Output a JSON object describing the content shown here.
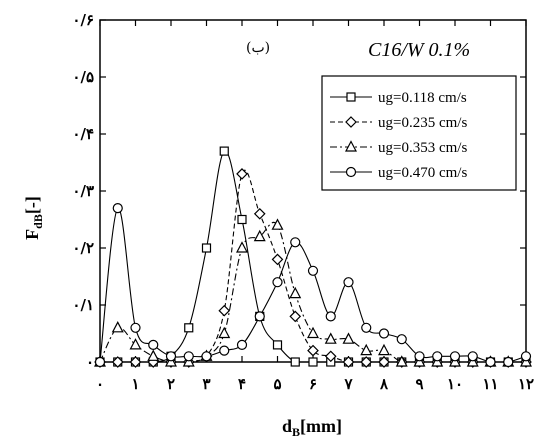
{
  "chart_data": {
    "type": "line",
    "panel_label": "(ب)",
    "annotation": "C16/W 0.1%",
    "xlabel": {
      "main": "d",
      "sub": "B",
      "unit": "[mm]"
    },
    "ylabel": {
      "main": "F",
      "sub": "dB",
      "unit": "[-]"
    },
    "xlim": [
      0,
      12
    ],
    "ylim": [
      0,
      0.6
    ],
    "xticks": [
      0,
      1,
      2,
      3,
      4,
      5,
      6,
      7,
      8,
      9,
      10,
      11,
      12
    ],
    "xtick_labels": [
      "۰",
      "۱",
      "۲",
      "۳",
      "۴",
      "۵",
      "۶",
      "۷",
      "۸",
      "۹",
      "۱۰",
      "۱۱",
      "۱۲"
    ],
    "yticks": [
      0,
      0.1,
      0.2,
      0.3,
      0.4,
      0.5,
      0.6
    ],
    "ytick_labels": [
      "۰",
      "۰/۱",
      "۰/۲",
      "۰/۳",
      "۰/۴",
      "۰/۵",
      "۰/۶"
    ],
    "legend_position": "top-right",
    "series": [
      {
        "name": "ug=0.118 cm/s",
        "marker": "square",
        "dash": "solid",
        "x": [
          0,
          0.5,
          1,
          1.5,
          2,
          2.5,
          3,
          3.5,
          4,
          4.5,
          5,
          5.5,
          6,
          6.5,
          7,
          7.5,
          8,
          8.5,
          9,
          9.5,
          10,
          10.5,
          11,
          11.5,
          12
        ],
        "y": [
          0,
          0,
          0,
          0,
          0.01,
          0.06,
          0.2,
          0.37,
          0.25,
          0.08,
          0.03,
          0,
          0,
          0,
          0,
          0,
          0,
          0,
          0,
          0,
          0,
          0,
          0,
          0,
          0
        ]
      },
      {
        "name": "ug=0.235 cm/s",
        "marker": "diamond",
        "dash": "dash",
        "x": [
          0,
          0.5,
          1,
          1.5,
          2,
          2.5,
          3,
          3.5,
          4,
          4.5,
          5,
          5.5,
          6,
          6.5,
          7,
          7.5,
          8,
          8.5,
          9,
          9.5,
          10,
          10.5,
          11,
          11.5,
          12
        ],
        "y": [
          0,
          0,
          0,
          0,
          0,
          0,
          0.01,
          0.09,
          0.33,
          0.26,
          0.18,
          0.08,
          0.02,
          0.01,
          0,
          0,
          0,
          0,
          0,
          0,
          0,
          0,
          0,
          0,
          0
        ]
      },
      {
        "name": "ug=0.353 cm/s",
        "marker": "triangle",
        "dash": "dashdot",
        "x": [
          0,
          0.5,
          1,
          1.5,
          2,
          2.5,
          3,
          3.5,
          4,
          4.5,
          5,
          5.5,
          6,
          6.5,
          7,
          7.5,
          8,
          8.5,
          9,
          9.5,
          10,
          10.5,
          11,
          11.5,
          12
        ],
        "y": [
          0,
          0.06,
          0.03,
          0.01,
          0,
          0,
          0.01,
          0.05,
          0.2,
          0.22,
          0.24,
          0.12,
          0.05,
          0.04,
          0.04,
          0.02,
          0.02,
          0,
          0,
          0,
          0,
          0,
          0,
          0,
          0
        ]
      },
      {
        "name": "ug=0.470 cm/s",
        "marker": "circle",
        "dash": "solid",
        "x": [
          0,
          0.5,
          1,
          1.5,
          2,
          2.5,
          3,
          3.5,
          4,
          4.5,
          5,
          5.5,
          6,
          6.5,
          7,
          7.5,
          8,
          8.5,
          9,
          9.5,
          10,
          10.5,
          11,
          11.5,
          12
        ],
        "y": [
          0,
          0.27,
          0.06,
          0.03,
          0.01,
          0.01,
          0.01,
          0.02,
          0.03,
          0.08,
          0.14,
          0.21,
          0.16,
          0.08,
          0.14,
          0.06,
          0.05,
          0.04,
          0.01,
          0.01,
          0.01,
          0.01,
          0,
          0,
          0.01
        ]
      }
    ]
  }
}
